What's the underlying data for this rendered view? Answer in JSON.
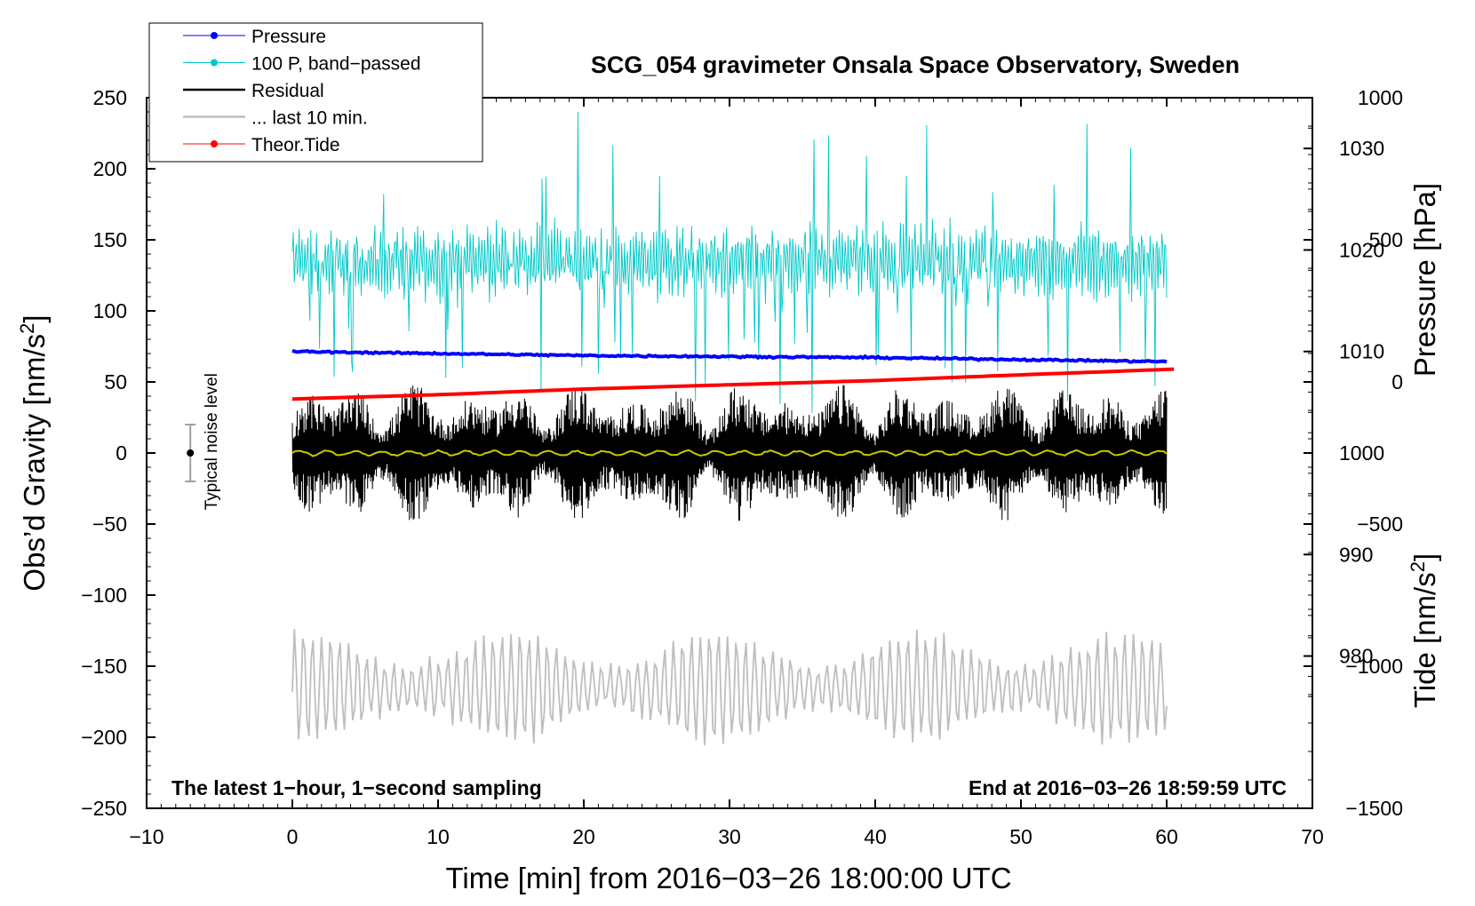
{
  "chart_data": {
    "type": "line",
    "title": "SCG_054 gravimeter Onsala Space Observatory, Sweden",
    "xlabel": "Time [min] from 2016−03−26 18:00:00 UTC",
    "ylabel_left": "Obs’d Gravity [nm/s",
    "ylabel_left_sup": "2",
    "ylabel_left_end": "]",
    "ylabel_right_top": "Pressure [hPa]",
    "ylabel_right_bottom": "Tide [nm/s",
    "ylabel_right_bottom_sup": "2",
    "ylabel_right_bottom_end": "]",
    "xlim": [
      -10,
      70
    ],
    "ylim": [
      -250,
      250
    ],
    "pressure_ylim": [
      965,
      1035
    ],
    "tide_ylim": [
      -1500,
      1000
    ],
    "x_ticks": [
      -10,
      0,
      10,
      20,
      30,
      40,
      50,
      60,
      70
    ],
    "x_tick_labels": [
      "−10",
      "0",
      "10",
      "20",
      "30",
      "40",
      "50",
      "60",
      "70"
    ],
    "y_ticks": [
      250,
      200,
      150,
      100,
      50,
      0,
      -50,
      -100,
      -150,
      -200,
      -250
    ],
    "y_tick_labels": [
      "250",
      "200",
      "150",
      "100",
      "50",
      "0",
      "−50",
      "−100",
      "−150",
      "−200",
      "−250"
    ],
    "pressure_ticks": [
      1030,
      1020,
      1010,
      1000,
      990,
      980
    ],
    "pressure_tick_labels": [
      "1030",
      "1020",
      "1010",
      "1000",
      "990",
      "980"
    ],
    "tide_ticks": [
      1000,
      500,
      0,
      -500,
      -1000,
      -1500
    ],
    "tide_tick_labels": [
      "1000",
      "500",
      "0",
      "−500",
      "−1000",
      "−1500"
    ],
    "series": [
      {
        "name": "Pressure",
        "color": "#0000ff",
        "axis": "pressure",
        "x": [
          0,
          10,
          20,
          30,
          40,
          50,
          60
        ],
        "values": [
          1010.0,
          1009.8,
          1009.6,
          1009.5,
          1009.4,
          1009.2,
          1009.0
        ]
      },
      {
        "name": "100 P, band−passed",
        "color": "#00c8c8",
        "axis": "gravity",
        "x": [
          0,
          60
        ],
        "values": [
          135,
          135
        ],
        "amplitude": 40
      },
      {
        "name": "Residual",
        "color": "#000000",
        "axis": "gravity",
        "x": [
          0,
          60
        ],
        "values": [
          0,
          0
        ],
        "amplitude": 35
      },
      {
        "name": "... last 10 min.",
        "color": "#bebebe",
        "axis": "gravity",
        "x": [
          0,
          60
        ],
        "values": [
          -165,
          -165
        ],
        "amplitude": 35
      },
      {
        "name": "Theor.Tide",
        "color": "#ff0000",
        "axis": "tide",
        "x": [
          0,
          10,
          20,
          30,
          40,
          50,
          60.5
        ],
        "values": [
          -60,
          -45,
          -25,
          -10,
          5,
          25,
          45
        ]
      }
    ],
    "smoothed_residual_color": "#c8c800",
    "noise_level": {
      "x": -7,
      "center": 0,
      "half_range": 20,
      "label": "Typical noise level"
    },
    "annotation_left": "The latest 1−hour, 1−second sampling",
    "annotation_right": "End at 2016−03−26 18:59:59 UTC"
  }
}
